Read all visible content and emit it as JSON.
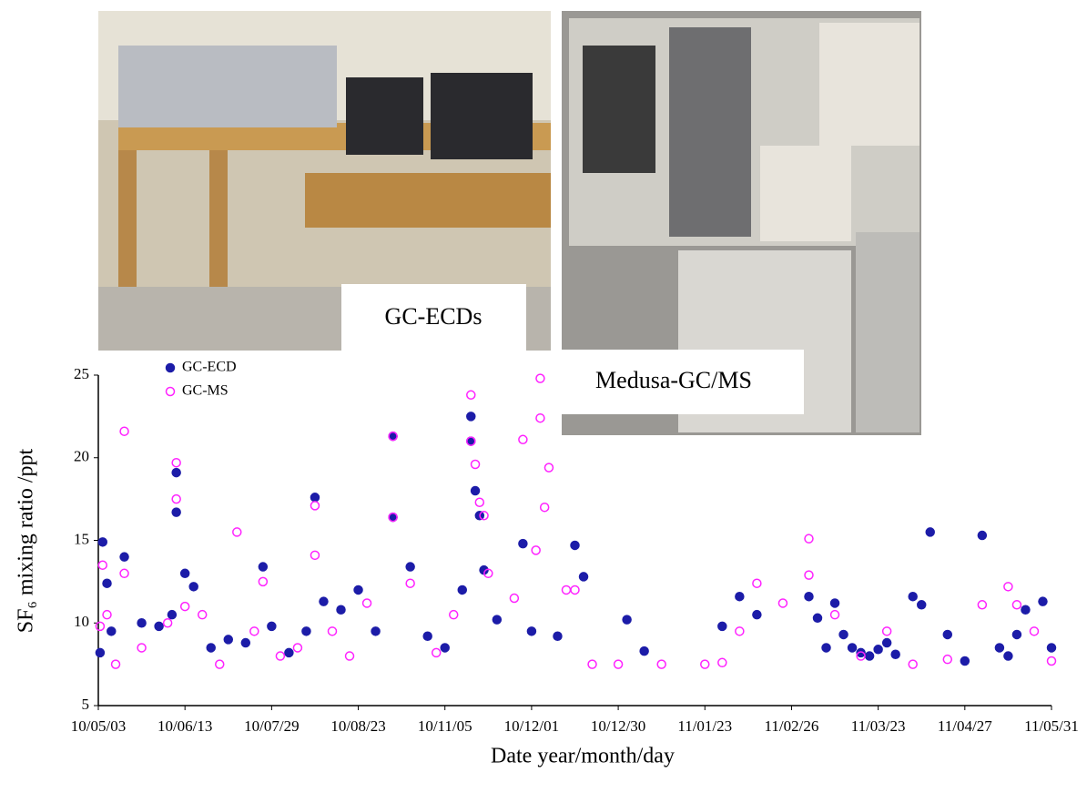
{
  "photo_labels": [
    "GC-ECDs",
    "Medusa-GC/MS"
  ],
  "chart_data": {
    "type": "scatter",
    "ylabel": "SF₆ mixing ratio /ppt",
    "xlabel": "Date year/month/day",
    "xlim": [
      0,
      11
    ],
    "xticks": [
      {
        "value": 0,
        "label": "10/05/03"
      },
      {
        "value": 1,
        "label": "10/06/13"
      },
      {
        "value": 2,
        "label": "10/07/29"
      },
      {
        "value": 3,
        "label": "10/08/23"
      },
      {
        "value": 4,
        "label": "10/11/05"
      },
      {
        "value": 5,
        "label": "10/12/01"
      },
      {
        "value": 6,
        "label": "10/12/30"
      },
      {
        "value": 7,
        "label": "11/01/23"
      },
      {
        "value": 8,
        "label": "11/02/26"
      },
      {
        "value": 9,
        "label": "11/03/23"
      },
      {
        "value": 10,
        "label": "11/04/27"
      },
      {
        "value": 11,
        "label": "11/05/31"
      }
    ],
    "ylim": [
      5,
      25
    ],
    "yticks": [
      5,
      10,
      15,
      20,
      25
    ],
    "series": [
      {
        "name": "GC-ECD",
        "color": "#1c1ca8",
        "marker": "filled",
        "x": [
          0.02,
          0.05,
          0.1,
          0.15,
          0.3,
          0.5,
          0.7,
          0.85,
          0.9,
          0.9,
          1.0,
          1.1,
          1.3,
          1.5,
          1.7,
          1.9,
          2.0,
          2.2,
          2.4,
          2.5,
          2.6,
          2.8,
          3.0,
          3.2,
          3.4,
          3.4,
          3.6,
          3.8,
          4.0,
          4.2,
          4.3,
          4.3,
          4.35,
          4.4,
          4.45,
          4.6,
          4.9,
          5.0,
          5.3,
          5.5,
          5.6,
          6.1,
          6.3,
          7.2,
          7.4,
          7.6,
          8.2,
          8.3,
          8.4,
          8.5,
          8.6,
          8.7,
          8.8,
          8.9,
          9.0,
          9.1,
          9.2,
          9.4,
          9.5,
          9.6,
          9.8,
          10.0,
          10.2,
          10.4,
          10.5,
          10.6,
          10.7,
          10.9,
          11.0
        ],
        "values": [
          8.2,
          14.9,
          12.4,
          9.5,
          14,
          10,
          9.8,
          10.5,
          19.1,
          16.7,
          13,
          12.2,
          8.5,
          9,
          8.8,
          13.4,
          9.8,
          8.2,
          9.5,
          17.6,
          11.3,
          10.8,
          12,
          9.5,
          21.3,
          16.4,
          13.4,
          9.2,
          8.5,
          12,
          22.5,
          21,
          18,
          16.5,
          13.2,
          10.2,
          14.8,
          9.5,
          9.2,
          14.7,
          12.8,
          10.2,
          8.3,
          9.8,
          11.6,
          10.5,
          11.6,
          10.3,
          8.5,
          11.2,
          9.3,
          8.5,
          8.2,
          8,
          8.4,
          8.8,
          8.1,
          11.6,
          11.1,
          15.5,
          9.3,
          7.7,
          15.3,
          8.5,
          8,
          9.3,
          10.8,
          11.3,
          8.5
        ]
      },
      {
        "name": "GC-MS",
        "color": "#ff22ff",
        "marker": "open",
        "x": [
          0.02,
          0.05,
          0.1,
          0.2,
          0.3,
          0.3,
          0.5,
          0.8,
          0.9,
          0.9,
          1.0,
          1.2,
          1.4,
          1.6,
          1.8,
          1.9,
          2.1,
          2.3,
          2.5,
          2.5,
          2.7,
          2.9,
          3.1,
          3.4,
          3.4,
          3.6,
          3.9,
          4.1,
          4.3,
          4.3,
          4.35,
          4.4,
          4.45,
          4.5,
          4.8,
          4.9,
          5.05,
          5.1,
          5.1,
          5.15,
          5.2,
          5.4,
          5.5,
          5.7,
          6.0,
          6.5,
          7.0,
          7.2,
          7.4,
          7.6,
          7.9,
          8.2,
          8.2,
          8.5,
          8.8,
          9.1,
          9.4,
          9.8,
          10.2,
          10.5,
          10.6,
          10.8,
          11.0
        ],
        "values": [
          9.8,
          13.5,
          10.5,
          7.5,
          21.6,
          13,
          8.5,
          10,
          19.7,
          17.5,
          11,
          10.5,
          7.5,
          15.5,
          9.5,
          12.5,
          8,
          8.5,
          17.1,
          14.1,
          9.5,
          8,
          11.2,
          21.3,
          16.4,
          12.4,
          8.2,
          10.5,
          23.8,
          21,
          19.6,
          17.3,
          16.5,
          13,
          11.5,
          21.1,
          14.4,
          24.8,
          22.4,
          17,
          19.4,
          12,
          12,
          7.5,
          7.5,
          7.5,
          7.5,
          7.6,
          9.5,
          12.4,
          11.2,
          15.1,
          12.9,
          10.5,
          8,
          9.5,
          7.5,
          7.8,
          11.1,
          12.2,
          11.1,
          9.5,
          7.7
        ]
      }
    ]
  }
}
